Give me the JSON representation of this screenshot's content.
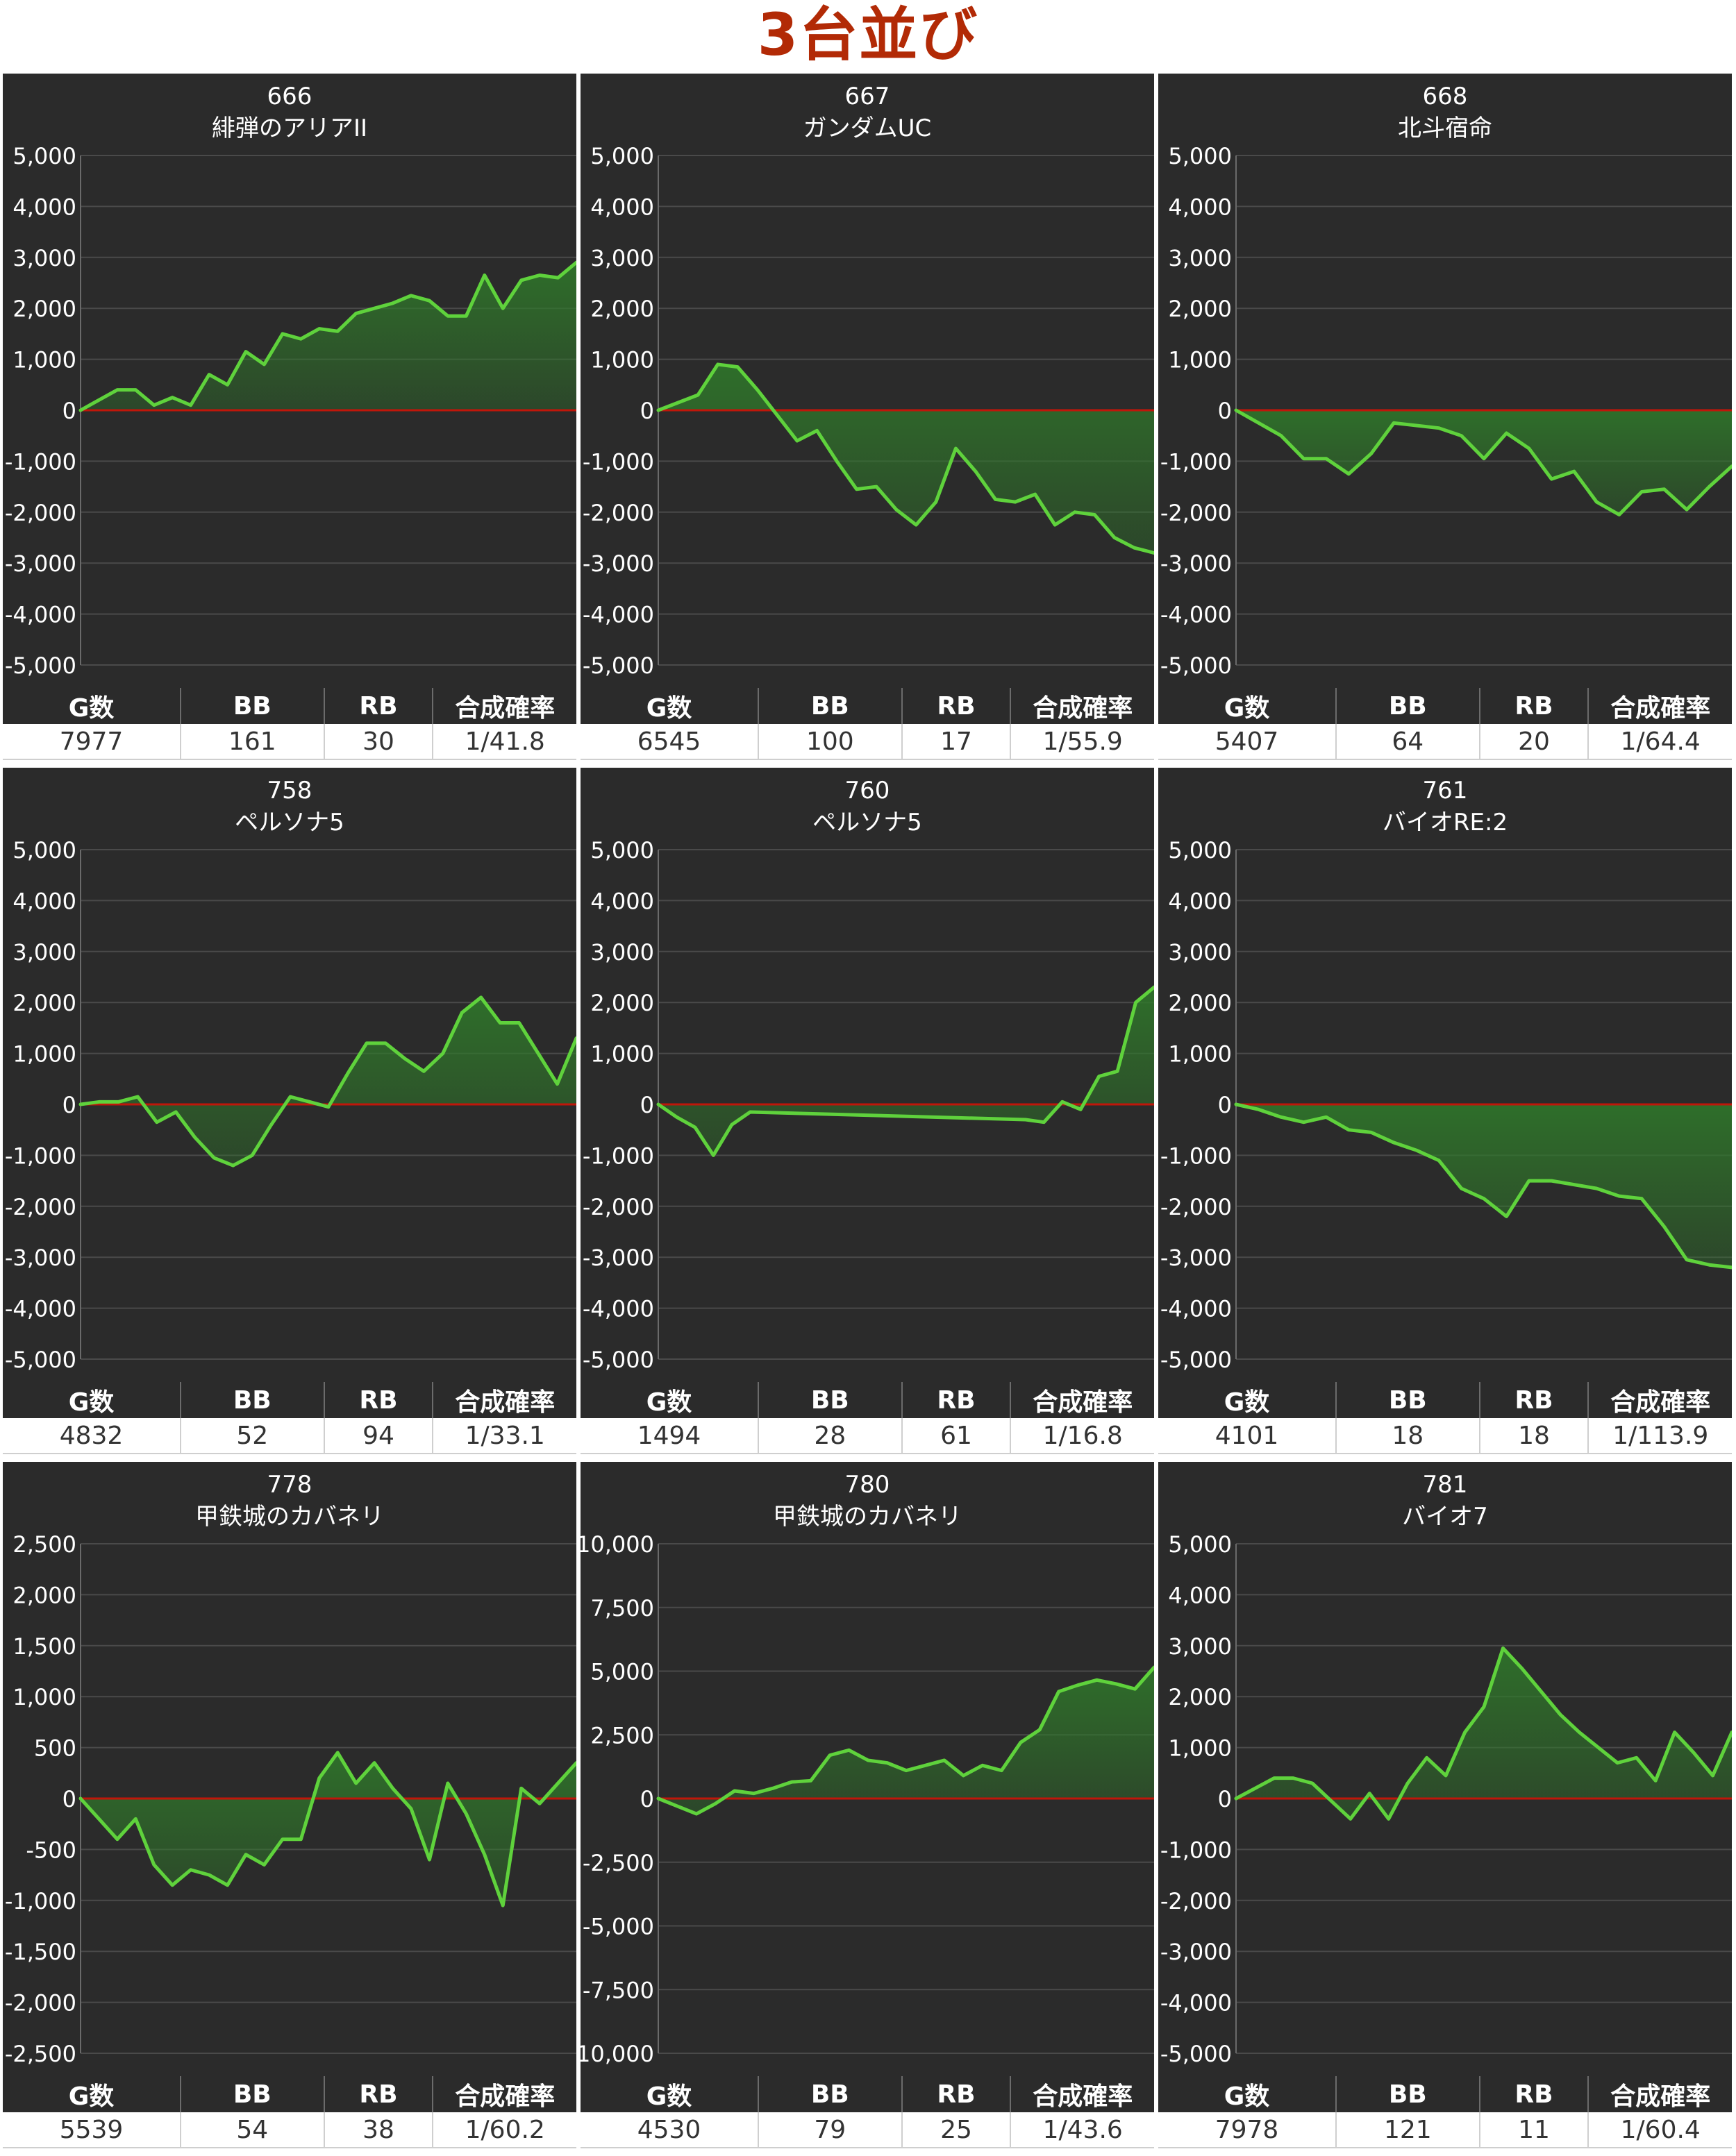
{
  "page_title": "3台並び",
  "colors": {
    "background": "#2b2b2b",
    "line": "#5fd23c",
    "fill": "#2f7a2a",
    "zero_line": "#c0160a",
    "title": "#b22a06",
    "grid": "#4a4a4a"
  },
  "table_headers": [
    "G数",
    "BB",
    "RB",
    "合成確率"
  ],
  "chart_data": [
    {
      "type": "area",
      "number": "666",
      "name": "緋弾のアリアII",
      "ylim": [
        -5000,
        5000
      ],
      "yticks": [
        "5,000",
        "4,000",
        "3,000",
        "2,000",
        "1,000",
        "0",
        "-1,000",
        "-2,000",
        "-3,000",
        "-4,000",
        "-5,000"
      ],
      "values": [
        0,
        200,
        400,
        400,
        100,
        250,
        100,
        700,
        500,
        1150,
        900,
        1500,
        1400,
        1600,
        1550,
        1900,
        2000,
        2100,
        2250,
        2150,
        1850,
        1850,
        2650,
        2000,
        2550,
        2650,
        2600,
        2900
      ],
      "stats": {
        "g": "7977",
        "bb": "161",
        "rb": "30",
        "rate": "1/41.8"
      }
    },
    {
      "type": "area",
      "number": "667",
      "name": "ガンダムUC",
      "ylim": [
        -5000,
        5000
      ],
      "yticks": [
        "5,000",
        "4,000",
        "3,000",
        "2,000",
        "1,000",
        "0",
        "-1,000",
        "-2,000",
        "-3,000",
        "-4,000",
        "-5,000"
      ],
      "values": [
        0,
        150,
        300,
        900,
        850,
        400,
        -100,
        -600,
        -400,
        -1000,
        -1550,
        -1500,
        -1950,
        -2250,
        -1800,
        -750,
        -1200,
        -1750,
        -1800,
        -1650,
        -2250,
        -2000,
        -2050,
        -2500,
        -2700,
        -2800
      ],
      "stats": {
        "g": "6545",
        "bb": "100",
        "rb": "17",
        "rate": "1/55.9"
      }
    },
    {
      "type": "area",
      "number": "668",
      "name": "北斗宿命",
      "ylim": [
        -5000,
        5000
      ],
      "yticks": [
        "5,000",
        "4,000",
        "3,000",
        "2,000",
        "1,000",
        "0",
        "-1,000",
        "-2,000",
        "-3,000",
        "-4,000",
        "-5,000"
      ],
      "values": [
        0,
        -250,
        -500,
        -950,
        -950,
        -1250,
        -850,
        -250,
        -300,
        -350,
        -500,
        -950,
        -450,
        -750,
        -1350,
        -1200,
        -1800,
        -2050,
        -1600,
        -1550,
        -1950,
        -1500,
        -1100
      ],
      "stats": {
        "g": "5407",
        "bb": "64",
        "rb": "20",
        "rate": "1/64.4"
      }
    },
    {
      "type": "area",
      "number": "758",
      "name": "ペルソナ5",
      "ylim": [
        -5000,
        5000
      ],
      "yticks": [
        "5,000",
        "4,000",
        "3,000",
        "2,000",
        "1,000",
        "0",
        "-1,000",
        "-2,000",
        "-3,000",
        "-4,000",
        "-5,000"
      ],
      "values": [
        0,
        50,
        50,
        150,
        -350,
        -150,
        -650,
        -1050,
        -1200,
        -1000,
        -400,
        150,
        50,
        -50,
        600,
        1200,
        1200,
        900,
        650,
        1000,
        1800,
        2100,
        1600,
        1600,
        1000,
        400,
        1300
      ],
      "stats": {
        "g": "4832",
        "bb": "52",
        "rb": "94",
        "rate": "1/33.1"
      }
    },
    {
      "type": "area",
      "number": "760",
      "name": "ペルソナ5",
      "ylim": [
        -5000,
        5000
      ],
      "yticks": [
        "5,000",
        "4,000",
        "3,000",
        "2,000",
        "1,000",
        "0",
        "-1,000",
        "-2,000",
        "-3,000",
        "-4,000",
        "-5,000"
      ],
      "x": [
        0,
        1,
        2,
        3,
        4,
        5,
        20,
        21,
        22,
        23,
        24,
        25,
        26,
        27
      ],
      "values": [
        0,
        -250,
        -450,
        -1000,
        -400,
        -150,
        -300,
        -350,
        50,
        -100,
        550,
        650,
        2000,
        2300
      ],
      "stats": {
        "g": "1494",
        "bb": "28",
        "rb": "61",
        "rate": "1/16.8"
      }
    },
    {
      "type": "area",
      "number": "761",
      "name": "バイオRE:2",
      "ylim": [
        -5000,
        5000
      ],
      "yticks": [
        "5,000",
        "4,000",
        "3,000",
        "2,000",
        "1,000",
        "0",
        "-1,000",
        "-2,000",
        "-3,000",
        "-4,000",
        "-5,000"
      ],
      "x": [
        0,
        1,
        2,
        3,
        4,
        5,
        6,
        7,
        8,
        9,
        10,
        11,
        12,
        13,
        14,
        16,
        17,
        18,
        19,
        20,
        21,
        22
      ],
      "values": [
        0,
        -100,
        -250,
        -350,
        -250,
        -500,
        -550,
        -750,
        -900,
        -1100,
        -1650,
        -1850,
        -2200,
        -1500,
        -1500,
        -1650,
        -1800,
        -1850,
        -2400,
        -3050,
        -3150,
        -3200
      ],
      "stats": {
        "g": "4101",
        "bb": "18",
        "rb": "18",
        "rate": "1/113.9"
      }
    },
    {
      "type": "area",
      "number": "778",
      "name": "甲鉄城のカバネリ",
      "ylim": [
        -2500,
        2500
      ],
      "yticks": [
        "2,500",
        "2,000",
        "1,500",
        "1,000",
        "500",
        "0",
        "-500",
        "-1,000",
        "-1,500",
        "-2,000",
        "-2,500"
      ],
      "values": [
        0,
        -200,
        -400,
        -200,
        -650,
        -850,
        -700,
        -750,
        -850,
        -550,
        -650,
        -400,
        -400,
        200,
        450,
        150,
        350,
        100,
        -100,
        -600,
        150,
        -150,
        -550,
        -1050,
        100,
        -50,
        150,
        350
      ],
      "stats": {
        "g": "5539",
        "bb": "54",
        "rb": "38",
        "rate": "1/60.2"
      }
    },
    {
      "type": "area",
      "number": "780",
      "name": "甲鉄城のカバネリ",
      "ylim": [
        -10000,
        10000
      ],
      "yticks": [
        "10,000",
        "7,500",
        "5,000",
        "2,500",
        "0",
        "-2,500",
        "-5,000",
        "-7,500",
        "-10,000"
      ],
      "values": [
        0,
        -300,
        -600,
        -200,
        300,
        200,
        400,
        650,
        700,
        1700,
        1900,
        1500,
        1400,
        1100,
        1300,
        1500,
        900,
        1300,
        1100,
        2200,
        2700,
        4200,
        4450,
        4650,
        4500,
        4300,
        5150
      ],
      "stats": {
        "g": "4530",
        "bb": "79",
        "rb": "25",
        "rate": "1/43.6"
      }
    },
    {
      "type": "area",
      "number": "781",
      "name": "バイオ7",
      "ylim": [
        -5000,
        5000
      ],
      "yticks": [
        "5,000",
        "4,000",
        "3,000",
        "2,000",
        "1,000",
        "0",
        "-1,000",
        "-2,000",
        "-3,000",
        "-4,000",
        "-5,000"
      ],
      "values": [
        0,
        200,
        400,
        400,
        300,
        -50,
        -400,
        100,
        -400,
        300,
        800,
        450,
        1300,
        1800,
        2950,
        2550,
        2100,
        1650,
        1300,
        1000,
        700,
        800,
        350,
        1300,
        900,
        450,
        1300
      ],
      "stats": {
        "g": "7978",
        "bb": "121",
        "rb": "11",
        "rate": "1/60.4"
      }
    }
  ]
}
